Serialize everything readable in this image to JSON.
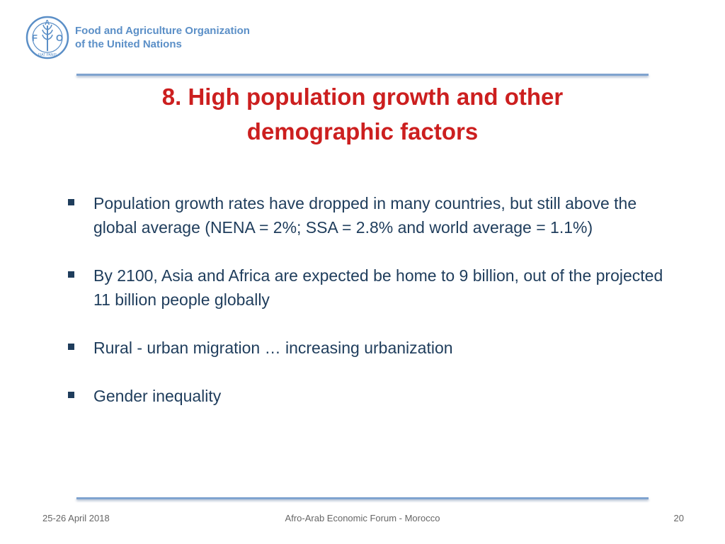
{
  "header": {
    "org_name_line1": "Food and Agriculture Organization",
    "org_name_line2": "of the United Nations",
    "emblem_letters": [
      "F",
      "A",
      "O"
    ],
    "emblem_motto": "FIAT PANIS",
    "brand_color": "#5b8fc7"
  },
  "slide": {
    "title_line1": "8. High population growth and other",
    "title_line2": "demographic factors",
    "title_color": "#cc1f1f",
    "bullets": [
      "Population growth rates have dropped in many countries, but still above the global average (NENA = 2%; SSA = 2.8% and world average = 1.1%)",
      "By 2100, Asia and Africa are expected be home to 9 billion, out of the projected 11 billion people globally",
      "Rural - urban migration … increasing urbanization",
      "Gender inequality"
    ]
  },
  "footer": {
    "date": "25-26 April 2018",
    "event": "Afro-Arab Economic Forum - Morocco",
    "page_number": "20"
  }
}
